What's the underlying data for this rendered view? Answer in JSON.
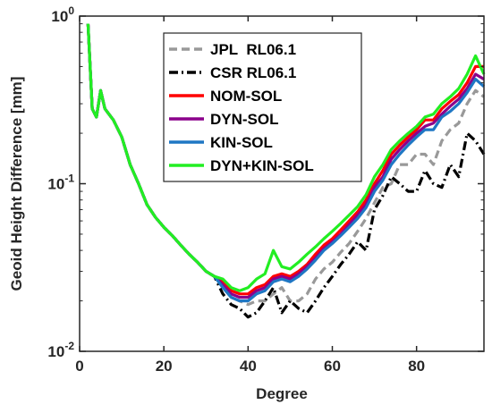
{
  "chart_data": {
    "type": "line",
    "title": "",
    "xlabel": "Degree",
    "ylabel": "Geoid Height Difference [mm]",
    "xlim": [
      0,
      96
    ],
    "ylim": [
      0.01,
      1
    ],
    "yscale": "log",
    "grid": false,
    "legend_position": "top-right",
    "x_ticks": [
      0,
      20,
      40,
      60,
      80
    ],
    "x_tick_labels": [
      "0",
      "20",
      "40",
      "60",
      "80"
    ],
    "y_ticks": [
      0.01,
      0.1,
      1
    ],
    "y_tick_labels": [
      {
        "base": "10",
        "exp": "-2"
      },
      {
        "base": "10",
        "exp": "-1"
      },
      {
        "base": "10",
        "exp": "0"
      }
    ],
    "series": [
      {
        "name": "JPL  RL06.1",
        "color": "#999999",
        "dash": "dashed",
        "x": [
          2,
          3,
          4,
          5,
          6,
          8,
          10,
          12,
          14,
          16,
          18,
          20,
          22,
          24,
          26,
          28,
          30,
          32,
          34,
          36,
          38,
          40,
          42,
          44,
          46,
          48,
          50,
          52,
          54,
          56,
          58,
          60,
          62,
          64,
          66,
          68,
          70,
          72,
          74,
          76,
          78,
          80,
          82,
          84,
          86,
          88,
          90,
          92,
          94,
          96
        ],
        "y": [
          0.9,
          0.28,
          0.25,
          0.36,
          0.28,
          0.24,
          0.19,
          0.13,
          0.1,
          0.075,
          0.063,
          0.055,
          0.049,
          0.043,
          0.038,
          0.034,
          0.03,
          0.028,
          0.024,
          0.021,
          0.02,
          0.019,
          0.02,
          0.02,
          0.022,
          0.024,
          0.02,
          0.02,
          0.022,
          0.027,
          0.031,
          0.034,
          0.039,
          0.044,
          0.052,
          0.062,
          0.077,
          0.095,
          0.1,
          0.13,
          0.13,
          0.15,
          0.15,
          0.13,
          0.18,
          0.21,
          0.23,
          0.3,
          0.36,
          0.33
        ]
      },
      {
        "name": "CSR RL06.1",
        "color": "#000000",
        "dash": "dashdot",
        "x": [
          2,
          3,
          4,
          5,
          6,
          8,
          10,
          12,
          14,
          16,
          18,
          20,
          22,
          24,
          26,
          28,
          30,
          32,
          34,
          36,
          38,
          40,
          42,
          44,
          46,
          48,
          50,
          52,
          54,
          56,
          58,
          60,
          62,
          64,
          66,
          68,
          70,
          72,
          74,
          76,
          78,
          80,
          82,
          84,
          86,
          88,
          90,
          92,
          94,
          96
        ],
        "y": [
          0.9,
          0.28,
          0.25,
          0.36,
          0.28,
          0.24,
          0.19,
          0.13,
          0.1,
          0.075,
          0.063,
          0.055,
          0.049,
          0.043,
          0.038,
          0.034,
          0.03,
          0.028,
          0.022,
          0.019,
          0.018,
          0.016,
          0.017,
          0.02,
          0.024,
          0.017,
          0.02,
          0.018,
          0.017,
          0.02,
          0.024,
          0.028,
          0.033,
          0.038,
          0.045,
          0.04,
          0.07,
          0.085,
          0.11,
          0.1,
          0.09,
          0.09,
          0.12,
          0.1,
          0.095,
          0.13,
          0.11,
          0.2,
          0.18,
          0.15
        ]
      },
      {
        "name": "NOM-SOL",
        "color": "#ff0000",
        "dash": "solid",
        "x": [
          2,
          3,
          4,
          5,
          6,
          8,
          10,
          12,
          14,
          16,
          18,
          20,
          22,
          24,
          26,
          28,
          30,
          32,
          34,
          36,
          38,
          40,
          42,
          44,
          46,
          48,
          50,
          52,
          54,
          56,
          58,
          60,
          62,
          64,
          66,
          68,
          70,
          72,
          74,
          76,
          78,
          80,
          82,
          84,
          86,
          88,
          90,
          92,
          94,
          96
        ],
        "y": [
          0.9,
          0.28,
          0.25,
          0.36,
          0.28,
          0.24,
          0.19,
          0.13,
          0.1,
          0.075,
          0.063,
          0.055,
          0.049,
          0.043,
          0.038,
          0.034,
          0.03,
          0.028,
          0.026,
          0.023,
          0.022,
          0.022,
          0.024,
          0.025,
          0.028,
          0.029,
          0.028,
          0.03,
          0.033,
          0.038,
          0.043,
          0.047,
          0.053,
          0.06,
          0.068,
          0.08,
          0.1,
          0.12,
          0.15,
          0.17,
          0.19,
          0.21,
          0.24,
          0.24,
          0.28,
          0.31,
          0.34,
          0.4,
          0.5,
          0.5
        ]
      },
      {
        "name": "DYN-SOL",
        "color": "#8b008b",
        "dash": "solid",
        "x": [
          2,
          3,
          4,
          5,
          6,
          8,
          10,
          12,
          14,
          16,
          18,
          20,
          22,
          24,
          26,
          28,
          30,
          32,
          34,
          36,
          38,
          40,
          42,
          44,
          46,
          48,
          50,
          52,
          54,
          56,
          58,
          60,
          62,
          64,
          66,
          68,
          70,
          72,
          74,
          76,
          78,
          80,
          82,
          84,
          86,
          88,
          90,
          92,
          94,
          96
        ],
        "y": [
          0.9,
          0.28,
          0.25,
          0.36,
          0.28,
          0.24,
          0.19,
          0.13,
          0.1,
          0.075,
          0.063,
          0.055,
          0.049,
          0.043,
          0.038,
          0.034,
          0.03,
          0.028,
          0.025,
          0.022,
          0.021,
          0.021,
          0.023,
          0.024,
          0.027,
          0.028,
          0.027,
          0.029,
          0.032,
          0.036,
          0.041,
          0.045,
          0.05,
          0.057,
          0.065,
          0.075,
          0.095,
          0.11,
          0.14,
          0.16,
          0.18,
          0.2,
          0.22,
          0.23,
          0.26,
          0.29,
          0.32,
          0.37,
          0.45,
          0.42
        ]
      },
      {
        "name": "KIN-SOL",
        "color": "#1f77c4",
        "dash": "solid",
        "x": [
          2,
          3,
          4,
          5,
          6,
          8,
          10,
          12,
          14,
          16,
          18,
          20,
          22,
          24,
          26,
          28,
          30,
          32,
          34,
          36,
          38,
          40,
          42,
          44,
          46,
          48,
          50,
          52,
          54,
          56,
          58,
          60,
          62,
          64,
          66,
          68,
          70,
          72,
          74,
          76,
          78,
          80,
          82,
          84,
          86,
          88,
          90,
          92,
          94,
          96
        ],
        "y": [
          0.9,
          0.28,
          0.25,
          0.36,
          0.28,
          0.24,
          0.19,
          0.13,
          0.1,
          0.075,
          0.063,
          0.055,
          0.049,
          0.043,
          0.038,
          0.034,
          0.03,
          0.028,
          0.024,
          0.021,
          0.02,
          0.02,
          0.022,
          0.023,
          0.026,
          0.027,
          0.026,
          0.028,
          0.031,
          0.035,
          0.04,
          0.044,
          0.049,
          0.055,
          0.062,
          0.072,
          0.09,
          0.105,
          0.13,
          0.15,
          0.17,
          0.19,
          0.21,
          0.21,
          0.25,
          0.27,
          0.3,
          0.35,
          0.42,
          0.38
        ]
      },
      {
        "name": "DYN+KIN-SOL",
        "color": "#22ee22",
        "dash": "solid",
        "x": [
          2,
          3,
          4,
          5,
          6,
          8,
          10,
          12,
          14,
          16,
          18,
          20,
          22,
          24,
          26,
          28,
          30,
          32,
          34,
          36,
          38,
          40,
          42,
          44,
          46,
          48,
          50,
          52,
          54,
          56,
          58,
          60,
          62,
          64,
          66,
          68,
          70,
          72,
          74,
          76,
          78,
          80,
          82,
          84,
          86,
          88,
          90,
          92,
          94,
          96
        ],
        "y": [
          0.9,
          0.28,
          0.25,
          0.36,
          0.28,
          0.24,
          0.19,
          0.13,
          0.1,
          0.075,
          0.063,
          0.055,
          0.049,
          0.043,
          0.038,
          0.034,
          0.03,
          0.028,
          0.027,
          0.024,
          0.023,
          0.024,
          0.027,
          0.029,
          0.04,
          0.032,
          0.031,
          0.034,
          0.038,
          0.042,
          0.047,
          0.052,
          0.058,
          0.065,
          0.073,
          0.086,
          0.11,
          0.13,
          0.16,
          0.18,
          0.2,
          0.22,
          0.25,
          0.26,
          0.3,
          0.33,
          0.37,
          0.45,
          0.58,
          0.45
        ]
      }
    ]
  }
}
